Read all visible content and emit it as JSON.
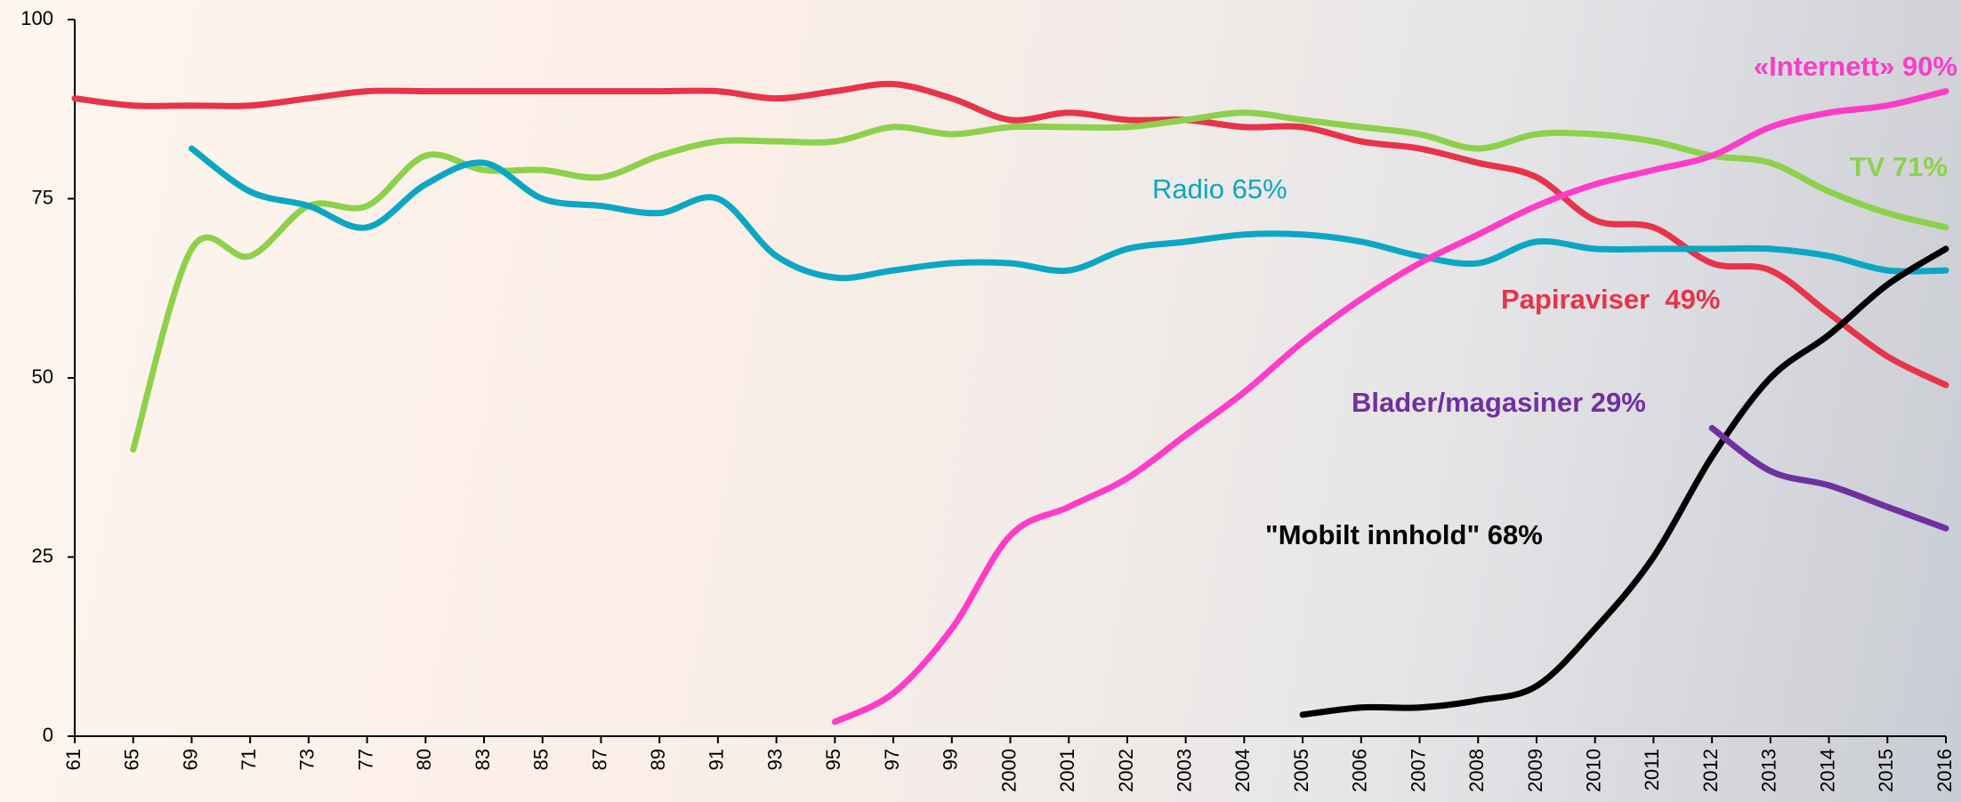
{
  "chart_data": {
    "type": "line",
    "categories": [
      "61",
      "65",
      "69",
      "71",
      "73",
      "77",
      "80",
      "83",
      "85",
      "87",
      "89",
      "91",
      "93",
      "95",
      "97",
      "99",
      "2000",
      "2001",
      "2002",
      "2003",
      "2004",
      "2005",
      "2006",
      "2007",
      "2008",
      "2009",
      "2010",
      "2011",
      "2012",
      "2013",
      "2014",
      "2015",
      "2016"
    ],
    "series": [
      {
        "name": "Papiraviser  49%",
        "color": "#e8334a",
        "values": [
          89,
          88,
          88,
          88,
          89,
          90,
          90,
          90,
          90,
          90,
          90,
          90,
          89,
          90,
          91,
          89,
          86,
          87,
          86,
          86,
          85,
          85,
          83,
          82,
          80,
          78,
          72,
          71,
          66,
          65,
          59,
          53,
          49
        ]
      },
      {
        "name": "TV 71%",
        "color": "#8dd14b",
        "values": [
          null,
          40,
          68,
          67,
          74,
          74,
          81,
          79,
          79,
          78,
          81,
          83,
          83,
          83,
          85,
          84,
          85,
          85,
          85,
          86,
          87,
          86,
          85,
          84,
          82,
          84,
          84,
          83,
          81,
          80,
          76,
          73,
          71
        ]
      },
      {
        "name": "Radio 65%",
        "color": "#0aa7c4",
        "values": [
          null,
          null,
          82,
          76,
          74,
          71,
          77,
          80,
          75,
          74,
          73,
          75,
          67,
          64,
          65,
          66,
          66,
          65,
          68,
          69,
          70,
          70,
          69,
          67,
          66,
          69,
          68,
          68,
          68,
          68,
          67,
          65,
          65
        ]
      },
      {
        "name": "«Internett» 90%",
        "color": "#ff3cc8",
        "values": [
          null,
          null,
          null,
          null,
          null,
          null,
          null,
          null,
          null,
          null,
          null,
          null,
          null,
          2,
          6,
          15,
          28,
          32,
          36,
          42,
          48,
          55,
          61,
          66,
          70,
          74,
          77,
          79,
          81,
          85,
          87,
          88,
          90
        ]
      },
      {
        "name": "\"Mobilt innhold\" 68%",
        "color": "#000000",
        "values": [
          null,
          null,
          null,
          null,
          null,
          null,
          null,
          null,
          null,
          null,
          null,
          null,
          null,
          null,
          null,
          null,
          null,
          null,
          null,
          null,
          null,
          3,
          4,
          4,
          5,
          7,
          15,
          25,
          39,
          50,
          56,
          63,
          68
        ]
      },
      {
        "name": "Blader/magasiner 29%",
        "color": "#7030a0",
        "values": [
          null,
          null,
          null,
          null,
          null,
          null,
          null,
          null,
          null,
          null,
          null,
          null,
          null,
          null,
          null,
          null,
          null,
          null,
          null,
          null,
          null,
          null,
          null,
          null,
          null,
          null,
          null,
          null,
          43,
          37,
          35,
          32,
          29
        ]
      }
    ],
    "ylim": [
      0,
      100
    ],
    "yticks": [
      0,
      25,
      50,
      75,
      100
    ],
    "grid": false
  }
}
